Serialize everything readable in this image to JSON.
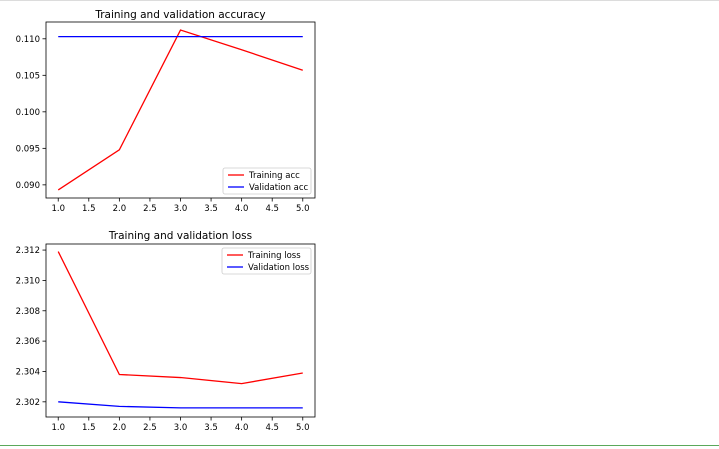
{
  "chart_data": [
    {
      "type": "line",
      "title": "Training and validation accuracy",
      "x": [
        1.0,
        2.0,
        3.0,
        4.0,
        5.0
      ],
      "series": [
        {
          "name": "Training acc",
          "color": "#ff0000",
          "values": [
            0.0893,
            0.0948,
            0.1112,
            0.1085,
            0.1057
          ]
        },
        {
          "name": "Validation acc",
          "color": "#0000ff",
          "values": [
            0.1103,
            0.1103,
            0.1103,
            0.1103,
            0.1103
          ]
        }
      ],
      "xticks": [
        "1.0",
        "1.5",
        "2.0",
        "2.5",
        "3.0",
        "3.5",
        "4.0",
        "4.5",
        "5.0"
      ],
      "yticks": [
        "0.090",
        "0.095",
        "0.100",
        "0.105",
        "0.110"
      ],
      "xlim": [
        0.8,
        5.2
      ],
      "ylim": [
        0.0882,
        0.1123
      ],
      "legend": "lower-right",
      "grid": false
    },
    {
      "type": "line",
      "title": "Training and validation loss",
      "x": [
        1.0,
        2.0,
        3.0,
        4.0,
        5.0
      ],
      "series": [
        {
          "name": "Training loss",
          "color": "#ff0000",
          "values": [
            2.3119,
            2.3038,
            2.3036,
            2.3032,
            2.3039
          ]
        },
        {
          "name": "Validation loss",
          "color": "#0000ff",
          "values": [
            2.302,
            2.3017,
            2.3016,
            2.3016,
            2.3016
          ]
        }
      ],
      "xticks": [
        "1.0",
        "1.5",
        "2.0",
        "2.5",
        "3.0",
        "3.5",
        "4.0",
        "4.5",
        "5.0"
      ],
      "yticks": [
        "2.302",
        "2.304",
        "2.306",
        "2.308",
        "2.310",
        "2.312"
      ],
      "xlim": [
        0.8,
        5.2
      ],
      "ylim": [
        2.301,
        2.3124
      ],
      "legend": "upper-right",
      "grid": false
    }
  ]
}
